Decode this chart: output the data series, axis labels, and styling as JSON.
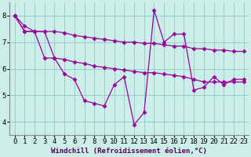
{
  "background_color": "#cceee8",
  "grid_color": "#99cccc",
  "line_color": "#990099",
  "marker": "D",
  "markersize": 2.5,
  "linewidth": 0.9,
  "xlabel": "Windchill (Refroidissement éolien,°C)",
  "xlabel_fontsize": 6.5,
  "xlim": [
    -0.5,
    23.5
  ],
  "ylim": [
    3.5,
    8.5
  ],
  "xticks": [
    0,
    1,
    2,
    3,
    4,
    5,
    6,
    7,
    8,
    9,
    10,
    11,
    12,
    13,
    14,
    15,
    16,
    17,
    18,
    19,
    20,
    21,
    22,
    23
  ],
  "yticks": [
    4,
    5,
    6,
    7,
    8
  ],
  "tick_fontsize": 6.5,
  "series": [
    [
      8.0,
      7.6,
      7.4,
      7.4,
      6.4,
      5.8,
      5.6,
      4.8,
      4.7,
      4.6,
      5.4,
      5.7,
      3.9,
      4.35,
      8.2,
      7.0,
      7.3,
      7.3,
      5.2,
      5.3,
      5.7,
      5.4,
      5.6,
      5.6
    ],
    [
      8.0,
      7.4,
      7.4,
      7.4,
      7.4,
      7.35,
      7.25,
      7.2,
      7.15,
      7.1,
      7.05,
      7.0,
      7.0,
      6.95,
      6.95,
      6.9,
      6.85,
      6.85,
      6.75,
      6.75,
      6.7,
      6.7,
      6.65,
      6.65
    ],
    [
      8.0,
      7.4,
      7.4,
      6.4,
      6.4,
      6.35,
      6.25,
      6.2,
      6.1,
      6.05,
      6.0,
      5.95,
      5.9,
      5.85,
      5.85,
      5.8,
      5.75,
      5.7,
      5.6,
      5.5,
      5.5,
      5.5,
      5.5,
      5.5
    ]
  ]
}
